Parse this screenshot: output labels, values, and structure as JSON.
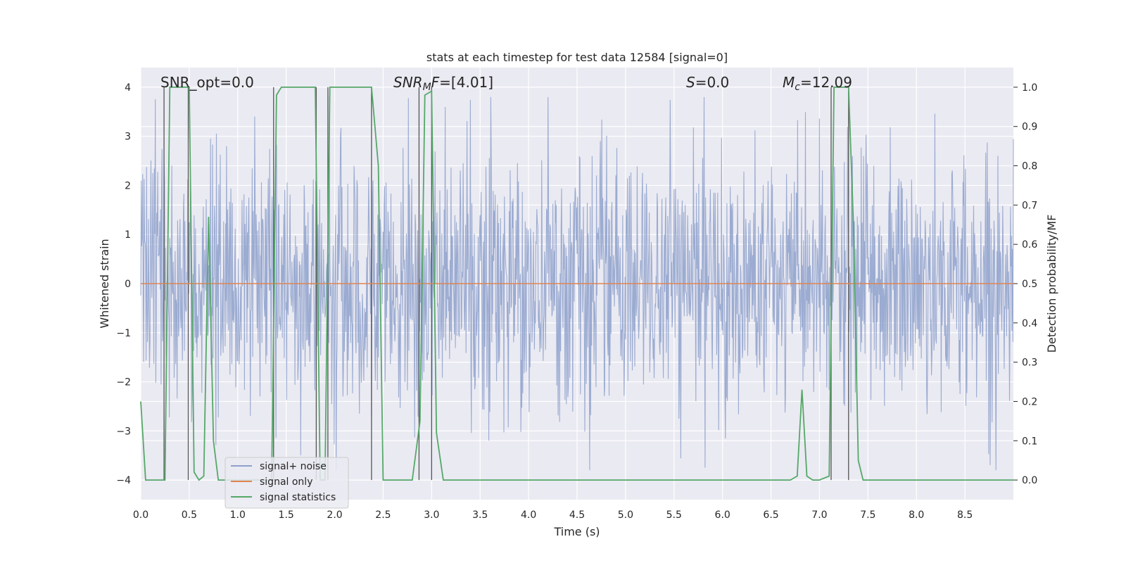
{
  "chart_data": {
    "type": "line",
    "title": "stats at each timestep for test data 12584 [signal=0]",
    "xlabel": "Time (s)",
    "ylabel": "Whitened strain",
    "ylabel_right": "Detection probability/MF",
    "xlim": [
      0.0,
      9.0
    ],
    "ylim": [
      -4.4,
      4.4
    ],
    "ylim_right": [
      -0.05,
      1.05
    ],
    "x_ticks": [
      "0.0",
      "0.5",
      "1.0",
      "1.5",
      "2.0",
      "2.5",
      "3.0",
      "3.5",
      "4.0",
      "4.5",
      "5.0",
      "5.5",
      "6.0",
      "6.5",
      "7.0",
      "7.5",
      "8.0",
      "8.5"
    ],
    "y_ticks": [
      "−4",
      "−3",
      "−2",
      "−1",
      "0",
      "1",
      "2",
      "3",
      "4"
    ],
    "y_right_ticks": [
      "0.0",
      "0.1",
      "0.2",
      "0.3",
      "0.4",
      "0.5",
      "0.6",
      "0.7",
      "0.8",
      "0.9",
      "1.0"
    ],
    "grid": true,
    "legend_position": "lower-left",
    "series": [
      {
        "name": "signal+ noise",
        "color": "#8da0cb",
        "axis": "left",
        "description": "whitened noise, amplitude roughly between -4 and 4"
      },
      {
        "name": "signal only",
        "color": "#dd8452",
        "axis": "left",
        "x": [
          0.0,
          9.0
        ],
        "values": [
          0.0,
          0.0
        ]
      },
      {
        "name": "signal statistics",
        "color": "#55a868",
        "axis": "right",
        "x": [
          0.0,
          0.05,
          0.1,
          0.15,
          0.25,
          0.3,
          0.35,
          0.4,
          0.45,
          0.5,
          0.55,
          0.6,
          0.65,
          0.7,
          0.75,
          0.8,
          0.85,
          0.9,
          0.95,
          1.0,
          1.1,
          1.2,
          1.3,
          1.35,
          1.4,
          1.45,
          1.5,
          1.6,
          1.7,
          1.8,
          1.85,
          1.9,
          1.95,
          2.0,
          2.1,
          2.2,
          2.3,
          2.38,
          2.45,
          2.5,
          2.6,
          2.7,
          2.8,
          2.88,
          2.93,
          3.0,
          3.05,
          3.12,
          3.3,
          4.0,
          5.0,
          6.0,
          6.7,
          6.77,
          6.82,
          6.87,
          6.93,
          7.0,
          7.1,
          7.15,
          7.2,
          7.3,
          7.35,
          7.4,
          7.45,
          7.5,
          8.0,
          8.5,
          9.0
        ],
        "values": [
          0.2,
          0.0,
          0.0,
          0.0,
          0.0,
          1.0,
          1.0,
          1.0,
          1.0,
          1.0,
          0.02,
          0.0,
          0.01,
          0.67,
          0.1,
          0.0,
          0.0,
          0.0,
          0.0,
          0.0,
          0.0,
          0.0,
          0.0,
          0.0,
          0.98,
          1.0,
          1.0,
          1.0,
          1.0,
          1.0,
          0.0,
          0.0,
          1.0,
          1.0,
          1.0,
          1.0,
          1.0,
          1.0,
          0.8,
          0.0,
          0.0,
          0.0,
          0.0,
          0.15,
          0.98,
          0.99,
          0.12,
          0.0,
          0.0,
          0.0,
          0.0,
          0.0,
          0.0,
          0.01,
          0.23,
          0.01,
          0.0,
          0.0,
          0.01,
          1.0,
          1.0,
          1.0,
          0.65,
          0.05,
          0.0,
          0.0,
          0.0,
          0.0,
          0.0
        ]
      }
    ],
    "vertical_lines_x": [
      0.24,
      0.49,
      1.37,
      1.81,
      1.93,
      2.38,
      2.87,
      3.0,
      7.12,
      7.3
    ],
    "annotations": [
      {
        "text": "SNR_opt=0.0"
      },
      {
        "prefix": "SNR",
        "sub": "M",
        "mid": "F",
        "suffix": "=[4.01]"
      },
      {
        "italic": "S",
        "suffix": "=0.0"
      },
      {
        "italic": "M",
        "sub": "c",
        "suffix": "=12.09"
      }
    ]
  }
}
